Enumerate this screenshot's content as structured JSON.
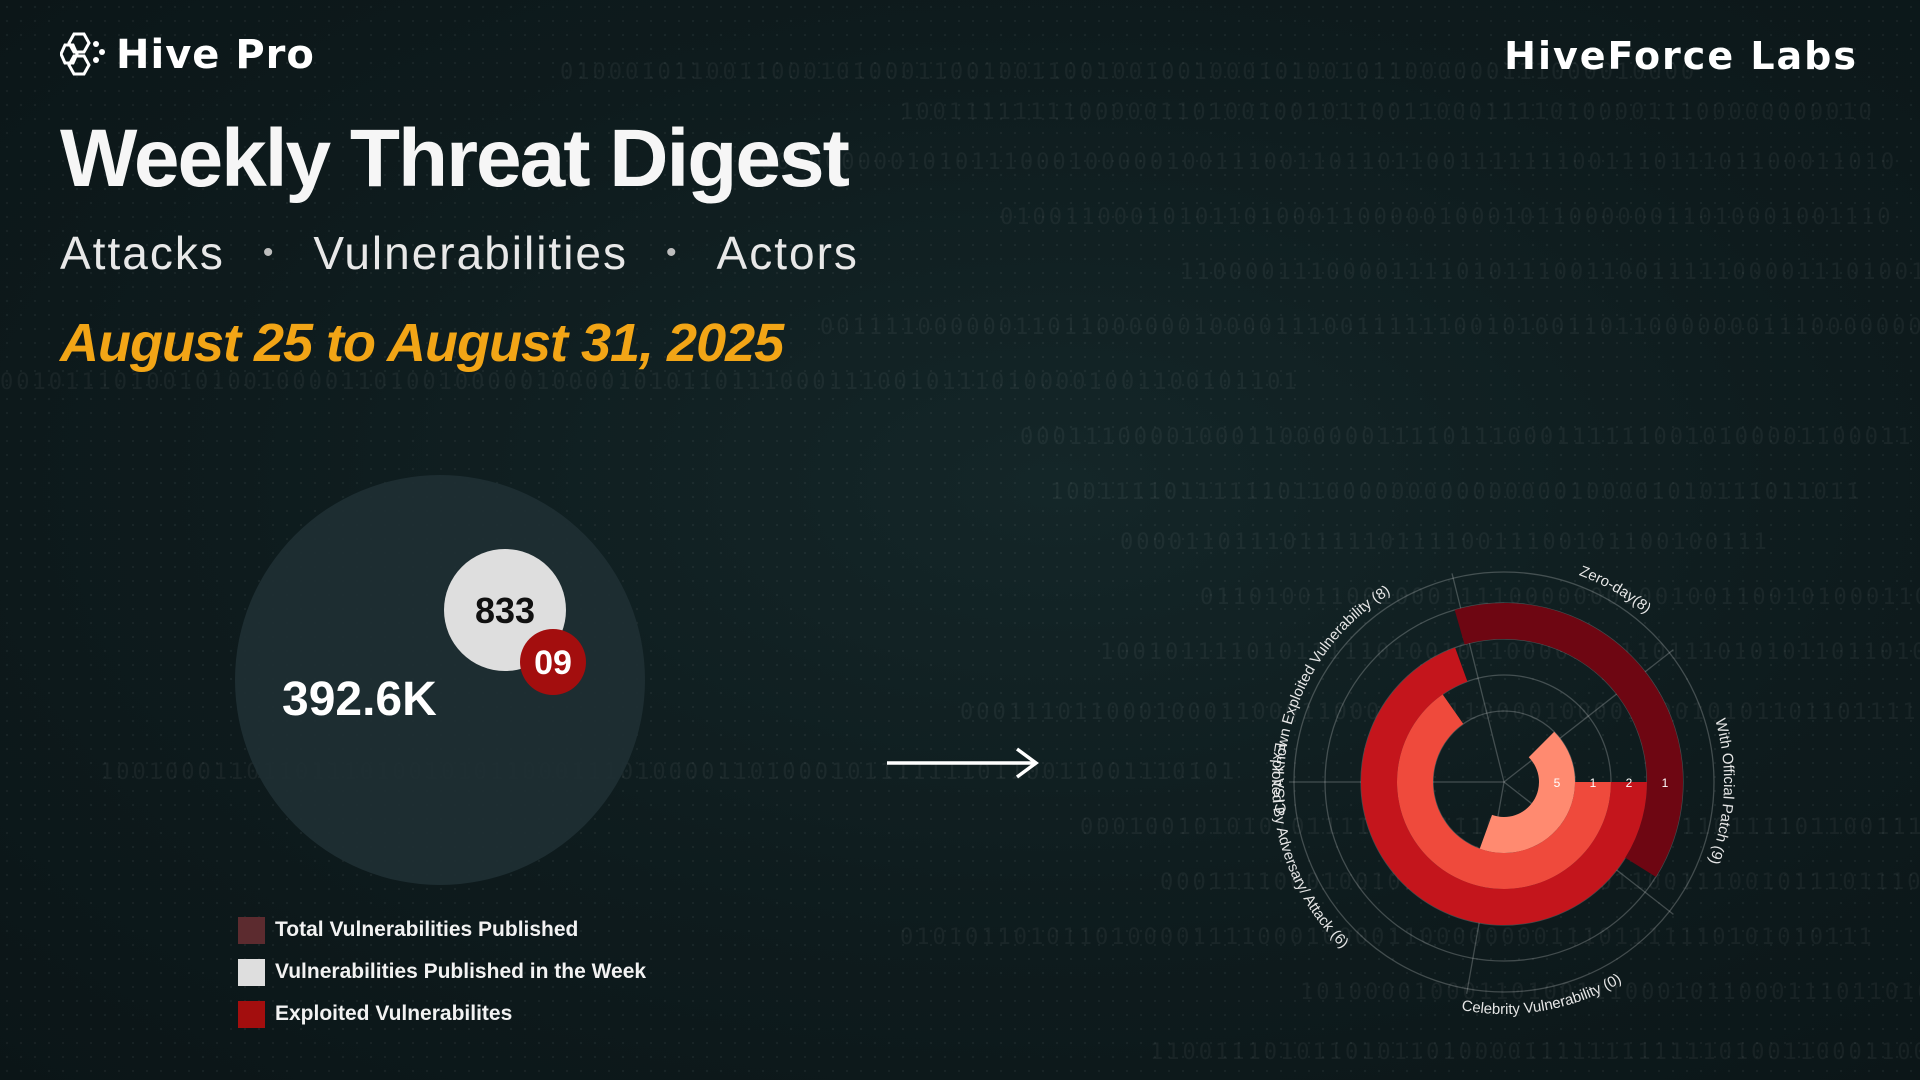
{
  "brand": {
    "logo_text": "Hive Pro",
    "right_text": "HiveForce Labs"
  },
  "header": {
    "title": "Weekly Threat Digest",
    "subtitle": [
      "Attacks",
      "Vulnerabilities",
      "Actors"
    ],
    "separator": "•",
    "date_range": "August 25 to August 31, 2025"
  },
  "colors": {
    "accent": "#f2a516",
    "total_bubble": "#1e2f33",
    "week_bubble": "#dedede",
    "exploited_bubble": "#a30e0e"
  },
  "bubble_chart": {
    "total_label": "392.6K",
    "week_label": "833",
    "exploited_label": "09"
  },
  "legend": [
    {
      "label": "Total Vulnerabilities Published",
      "color": "#5c2b2f"
    },
    {
      "label": "Vulnerabilities Published in the Week",
      "color": "#dedede"
    },
    {
      "label": "Exploited Vulnerabilites",
      "color": "#a30e0e"
    }
  ],
  "chart_data": {
    "type": "radial-bar",
    "categories": [
      "Zero-day(8)",
      "With Official Patch (9)",
      "Celebrity Vulnerability (0)",
      "Exploited By Adversary/ Attack (6)",
      "CISA Known Exploited Vulnerability (8)"
    ],
    "values": [
      8,
      9,
      0,
      6,
      8
    ],
    "ring_labels": [
      "5",
      "1",
      "2",
      "1"
    ],
    "ring_colors": [
      "#ff8a70",
      "#ef4a3c",
      "#c4151c",
      "#6e0612"
    ],
    "grid": true
  }
}
